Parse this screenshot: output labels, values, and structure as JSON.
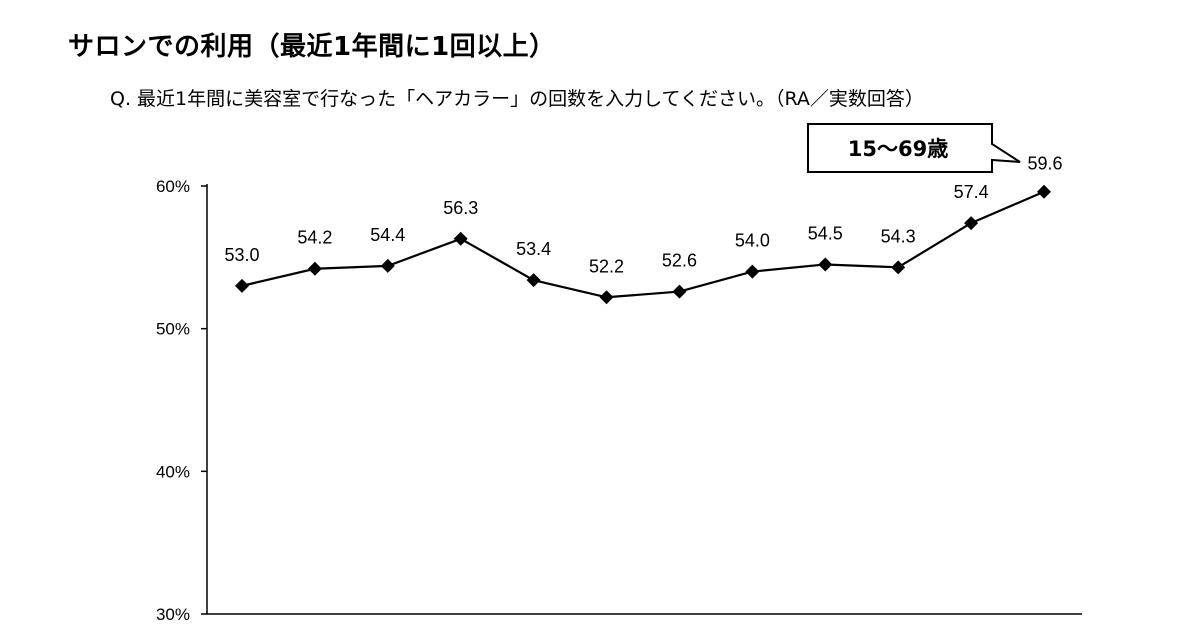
{
  "header": {
    "title": "サロンでの利用（最近1年間に1回以上）",
    "question": "Q.  最近1年間に美容室で行なった「ヘアカラー」の回数を入力してください。（RA／実数回答）"
  },
  "chart_data": {
    "type": "line",
    "title": "",
    "xlabel": "",
    "ylabel": "",
    "ylim": [
      30,
      60
    ],
    "ytick_labels": [
      "60%",
      "50%",
      "40%",
      "30%"
    ],
    "ytick_values": [
      60,
      50,
      40,
      30
    ],
    "grid": false,
    "callout": "15～69歳",
    "series": [
      {
        "values": [
          53.0,
          54.2,
          54.4,
          56.3,
          53.4,
          52.2,
          52.6,
          54.0,
          54.5,
          54.3,
          57.4,
          59.6
        ],
        "labels": [
          "53.0",
          "54.2",
          "54.4",
          "56.3",
          "53.4",
          "52.2",
          "52.6",
          "54.0",
          "54.5",
          "54.3",
          "57.4",
          "59.6"
        ],
        "color": "#000000",
        "marker": "diamond"
      }
    ]
  }
}
